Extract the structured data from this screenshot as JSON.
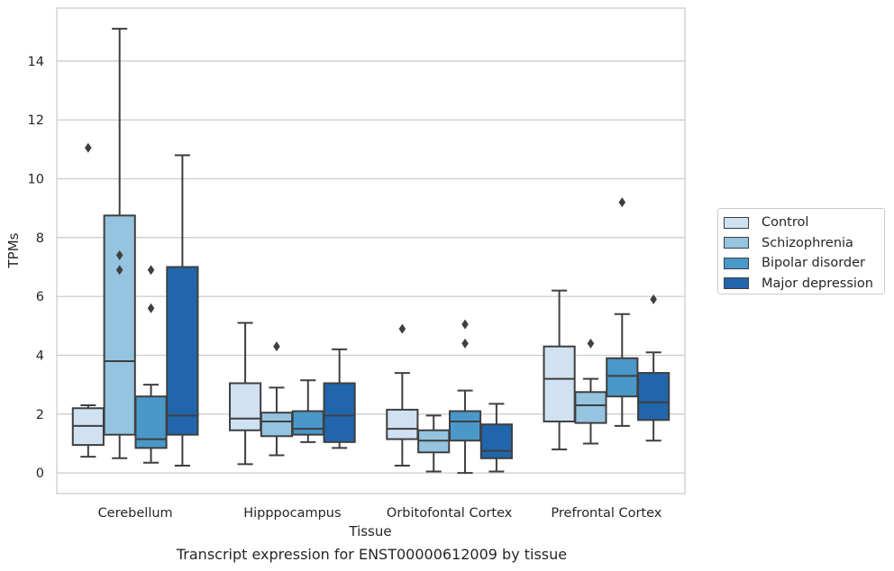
{
  "chart_data": {
    "type": "box",
    "title": "",
    "xlabel": "Tissue",
    "ylabel": "TPMs",
    "caption": "Transcript expression for ENST00000612009 by tissue",
    "ylim": [
      -0.7,
      15.8
    ],
    "yticks": [
      0,
      2,
      4,
      6,
      8,
      10,
      12,
      14
    ],
    "grid": "horizontal",
    "legend_placement": "right",
    "categories": [
      "Cerebellum",
      "Hipppocampus",
      "Orbitofontal Cortex",
      "Prefrontal Cortex"
    ],
    "series": [
      {
        "name": "Control",
        "color": "#d0e1f2",
        "boxes": [
          {
            "whislo": 0.55,
            "q1": 0.95,
            "med": 1.6,
            "q3": 2.2,
            "whishi": 2.3,
            "fliers": [
              11.05
            ]
          },
          {
            "whislo": 0.3,
            "q1": 1.45,
            "med": 1.85,
            "q3": 3.05,
            "whishi": 5.1,
            "fliers": []
          },
          {
            "whislo": 0.25,
            "q1": 1.15,
            "med": 1.5,
            "q3": 2.15,
            "whishi": 3.4,
            "fliers": [
              4.9
            ]
          },
          {
            "whislo": 0.8,
            "q1": 1.75,
            "med": 3.2,
            "q3": 4.3,
            "whishi": 6.2,
            "fliers": []
          }
        ]
      },
      {
        "name": "Schizophrenia",
        "color": "#94c4df",
        "boxes": [
          {
            "whislo": 0.5,
            "q1": 1.3,
            "med": 3.8,
            "q3": 8.75,
            "whishi": 15.1,
            "fliers": [
              7.4,
              6.9
            ]
          },
          {
            "whislo": 0.6,
            "q1": 1.25,
            "med": 1.75,
            "q3": 2.05,
            "whishi": 2.9,
            "fliers": [
              4.3
            ]
          },
          {
            "whislo": 0.05,
            "q1": 0.7,
            "med": 1.1,
            "q3": 1.45,
            "whishi": 1.95,
            "fliers": []
          },
          {
            "whislo": 1.0,
            "q1": 1.7,
            "med": 2.3,
            "q3": 2.75,
            "whishi": 3.2,
            "fliers": [
              4.4
            ]
          }
        ]
      },
      {
        "name": "Bipolar disorder",
        "color": "#4a98c9",
        "boxes": [
          {
            "whislo": 0.35,
            "q1": 0.85,
            "med": 1.15,
            "q3": 2.6,
            "whishi": 3.0,
            "fliers": [
              6.9,
              5.6
            ]
          },
          {
            "whislo": 1.05,
            "q1": 1.3,
            "med": 1.5,
            "q3": 2.1,
            "whishi": 3.15,
            "fliers": []
          },
          {
            "whislo": 0.0,
            "q1": 1.1,
            "med": 1.75,
            "q3": 2.1,
            "whishi": 2.8,
            "fliers": [
              5.05,
              4.4
            ]
          },
          {
            "whislo": 1.6,
            "q1": 2.6,
            "med": 3.3,
            "q3": 3.9,
            "whishi": 5.4,
            "fliers": [
              9.2
            ]
          }
        ]
      },
      {
        "name": "Major depression",
        "color": "#2166ac",
        "boxes": [
          {
            "whislo": 0.25,
            "q1": 1.3,
            "med": 1.95,
            "q3": 7.0,
            "whishi": 10.8,
            "fliers": []
          },
          {
            "whislo": 0.85,
            "q1": 1.05,
            "med": 1.95,
            "q3": 3.05,
            "whishi": 4.2,
            "fliers": []
          },
          {
            "whislo": 0.05,
            "q1": 0.5,
            "med": 0.75,
            "q3": 1.65,
            "whishi": 2.35,
            "fliers": []
          },
          {
            "whislo": 1.1,
            "q1": 1.8,
            "med": 2.4,
            "q3": 3.4,
            "whishi": 4.1,
            "fliers": [
              5.9
            ]
          }
        ]
      }
    ]
  }
}
